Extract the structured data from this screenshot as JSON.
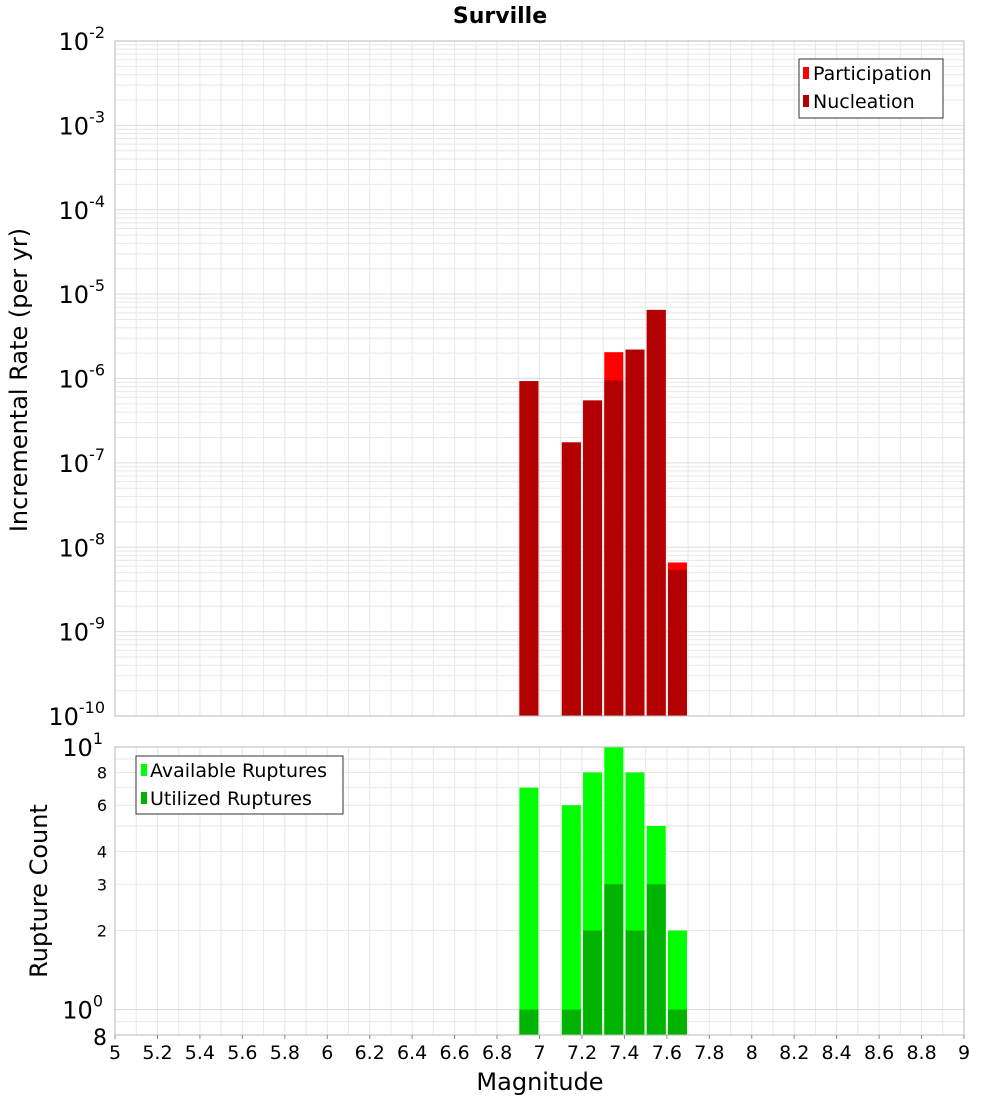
{
  "title": "Surville",
  "colors": {
    "participation": "#ff0000",
    "nucleation": "#b30000",
    "available": "#00ff00",
    "utilized": "#00b300",
    "grid": "#e8e8e8",
    "frame": "#b8b8b8"
  },
  "chart_data": [
    {
      "type": "bar",
      "title": "Surville",
      "xlabel": "Magnitude",
      "ylabel": "Incremental Rate (per yr)",
      "yscale": "log",
      "ylim": [
        1e-10,
        0.01
      ],
      "xlim": [
        5,
        9
      ],
      "grid": true,
      "legend_position": "top-right",
      "y_ticks": [
        {
          "base": "10",
          "exp": "-10"
        },
        {
          "base": "10",
          "exp": "-9"
        },
        {
          "base": "10",
          "exp": "-8"
        },
        {
          "base": "10",
          "exp": "-7"
        },
        {
          "base": "10",
          "exp": "-6"
        },
        {
          "base": "10",
          "exp": "-5"
        },
        {
          "base": "10",
          "exp": "-4"
        },
        {
          "base": "10",
          "exp": "-3"
        },
        {
          "base": "10",
          "exp": "-2"
        }
      ],
      "series": [
        {
          "name": "Participation",
          "x": [
            6.95,
            7.15,
            7.25,
            7.35,
            7.45,
            7.55,
            7.65
          ],
          "values": [
            9.3e-07,
            1.75e-07,
            5.5e-07,
            2.05e-06,
            2.2e-06,
            6.5e-06,
            6.6e-09
          ]
        },
        {
          "name": "Nucleation",
          "x": [
            6.95,
            7.15,
            7.25,
            7.35,
            7.45,
            7.55,
            7.65
          ],
          "values": [
            9.3e-07,
            1.75e-07,
            5.5e-07,
            9.5e-07,
            2.2e-06,
            6.5e-06,
            5.4e-09
          ]
        }
      ]
    },
    {
      "type": "bar",
      "xlabel": "Magnitude",
      "ylabel": "Rupture Count",
      "yscale": "log",
      "ylim": [
        0.8,
        10
      ],
      "xlim": [
        5,
        9
      ],
      "grid": true,
      "legend_position": "top-left",
      "x_ticks": [
        "5",
        "5.2",
        "5.4",
        "5.6",
        "5.8",
        "6",
        "6.2",
        "6.4",
        "6.6",
        "6.8",
        "7",
        "7.2",
        "7.4",
        "7.6",
        "7.8",
        "8",
        "8.2",
        "8.4",
        "8.6",
        "8.8",
        "9"
      ],
      "y_minor_ticks": [
        "8",
        "2",
        "3",
        "4",
        "6",
        "8"
      ],
      "y_major_ticks": [
        {
          "base": "10",
          "exp": "0"
        },
        {
          "base": "10",
          "exp": "1"
        }
      ],
      "series": [
        {
          "name": "Available Ruptures",
          "x": [
            6.95,
            7.15,
            7.25,
            7.35,
            7.45,
            7.55,
            7.65
          ],
          "values": [
            7,
            6,
            8,
            10,
            8,
            5,
            2
          ]
        },
        {
          "name": "Utilized Ruptures",
          "x": [
            6.95,
            7.15,
            7.25,
            7.35,
            7.45,
            7.55,
            7.65
          ],
          "values": [
            1,
            1,
            2,
            3,
            2,
            3,
            1
          ]
        }
      ]
    }
  ]
}
